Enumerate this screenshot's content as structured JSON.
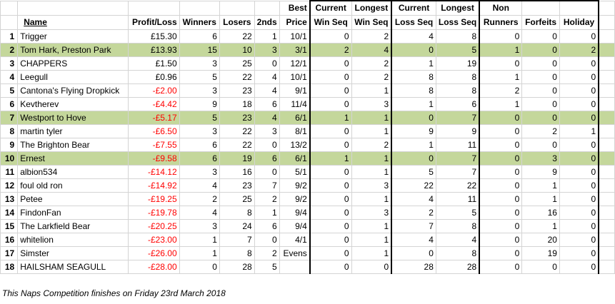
{
  "headers": {
    "name": "Name",
    "profit_loss": "Profit/Loss",
    "winners": "Winners",
    "losers": "Losers",
    "seconds": "2nds",
    "best_price": [
      "Best",
      "Price"
    ],
    "current_win_seq": [
      "Current",
      "Win Seq"
    ],
    "longest_win_seq": [
      "Longest",
      "Win Seq"
    ],
    "current_loss_seq": [
      "Current",
      "Loss Seq"
    ],
    "longest_loss_seq": [
      "Longest",
      "Loss Seq"
    ],
    "non_runners": [
      "Non",
      "Runners"
    ],
    "forfeits": "Forfeits",
    "holiday": "Holiday"
  },
  "rows": [
    {
      "rank": "1",
      "name": "Trigger",
      "pl": "£15.30",
      "neg": false,
      "win": "6",
      "lose": "22",
      "sec": "1",
      "best": "10/1",
      "cws": "0",
      "lws": "2",
      "cls": "4",
      "lls": "8",
      "nr": "0",
      "ff": "0",
      "hol": "0",
      "hl": false
    },
    {
      "rank": "2",
      "name": "Tom Hark, Preston Park",
      "pl": "£13.93",
      "neg": false,
      "win": "15",
      "lose": "10",
      "sec": "3",
      "best": "3/1",
      "cws": "2",
      "lws": "4",
      "cls": "0",
      "lls": "5",
      "nr": "1",
      "ff": "0",
      "hol": "2",
      "hl": true
    },
    {
      "rank": "3",
      "name": "CHAPPERS",
      "pl": "£1.50",
      "neg": false,
      "win": "3",
      "lose": "25",
      "sec": "0",
      "best": "12/1",
      "cws": "0",
      "lws": "2",
      "cls": "1",
      "lls": "19",
      "nr": "0",
      "ff": "0",
      "hol": "0",
      "hl": false
    },
    {
      "rank": "4",
      "name": "Leegull",
      "pl": "£0.96",
      "neg": false,
      "win": "5",
      "lose": "22",
      "sec": "4",
      "best": "10/1",
      "cws": "0",
      "lws": "2",
      "cls": "8",
      "lls": "8",
      "nr": "1",
      "ff": "0",
      "hol": "0",
      "hl": false
    },
    {
      "rank": "5",
      "name": "Cantona's Flying Dropkick",
      "pl": "-£2.00",
      "neg": true,
      "win": "3",
      "lose": "23",
      "sec": "4",
      "best": "9/1",
      "cws": "0",
      "lws": "1",
      "cls": "8",
      "lls": "8",
      "nr": "2",
      "ff": "0",
      "hol": "0",
      "hl": false
    },
    {
      "rank": "6",
      "name": "Kevtherev",
      "pl": "-£4.42",
      "neg": true,
      "win": "9",
      "lose": "18",
      "sec": "6",
      "best": "11/4",
      "cws": "0",
      "lws": "3",
      "cls": "1",
      "lls": "6",
      "nr": "1",
      "ff": "0",
      "hol": "0",
      "hl": false
    },
    {
      "rank": "7",
      "name": "Westport to Hove",
      "pl": "-£5.17",
      "neg": true,
      "win": "5",
      "lose": "23",
      "sec": "4",
      "best": "6/1",
      "cws": "1",
      "lws": "1",
      "cls": "0",
      "lls": "7",
      "nr": "0",
      "ff": "0",
      "hol": "0",
      "hl": true
    },
    {
      "rank": "8",
      "name": "martin tyler",
      "pl": "-£6.50",
      "neg": true,
      "win": "3",
      "lose": "22",
      "sec": "3",
      "best": "8/1",
      "cws": "0",
      "lws": "1",
      "cls": "9",
      "lls": "9",
      "nr": "0",
      "ff": "2",
      "hol": "1",
      "hl": false
    },
    {
      "rank": "9",
      "name": "The Brighton Bear",
      "pl": "-£7.55",
      "neg": true,
      "win": "6",
      "lose": "22",
      "sec": "0",
      "best": "13/2",
      "cws": "0",
      "lws": "2",
      "cls": "1",
      "lls": "11",
      "nr": "0",
      "ff": "0",
      "hol": "0",
      "hl": false
    },
    {
      "rank": "10",
      "name": "Ernest",
      "pl": "-£9.58",
      "neg": true,
      "win": "6",
      "lose": "19",
      "sec": "6",
      "best": "6/1",
      "cws": "1",
      "lws": "1",
      "cls": "0",
      "lls": "7",
      "nr": "0",
      "ff": "3",
      "hol": "0",
      "hl": true
    },
    {
      "rank": "11",
      "name": "albion534",
      "pl": "-£14.12",
      "neg": true,
      "win": "3",
      "lose": "16",
      "sec": "0",
      "best": "5/1",
      "cws": "0",
      "lws": "1",
      "cls": "5",
      "lls": "7",
      "nr": "0",
      "ff": "9",
      "hol": "0",
      "hl": false
    },
    {
      "rank": "12",
      "name": "foul old ron",
      "pl": "-£14.92",
      "neg": true,
      "win": "4",
      "lose": "23",
      "sec": "7",
      "best": "9/2",
      "cws": "0",
      "lws": "3",
      "cls": "22",
      "lls": "22",
      "nr": "0",
      "ff": "1",
      "hol": "0",
      "hl": false
    },
    {
      "rank": "13",
      "name": "Petee",
      "pl": "-£19.25",
      "neg": true,
      "win": "2",
      "lose": "25",
      "sec": "2",
      "best": "9/2",
      "cws": "0",
      "lws": "1",
      "cls": "4",
      "lls": "11",
      "nr": "0",
      "ff": "1",
      "hol": "0",
      "hl": false
    },
    {
      "rank": "14",
      "name": "FindonFan",
      "pl": "-£19.78",
      "neg": true,
      "win": "4",
      "lose": "8",
      "sec": "1",
      "best": "9/4",
      "cws": "0",
      "lws": "3",
      "cls": "2",
      "lls": "5",
      "nr": "0",
      "ff": "16",
      "hol": "0",
      "hl": false
    },
    {
      "rank": "15",
      "name": "The Larkfield Bear",
      "pl": "-£20.25",
      "neg": true,
      "win": "3",
      "lose": "24",
      "sec": "6",
      "best": "9/4",
      "cws": "0",
      "lws": "1",
      "cls": "7",
      "lls": "8",
      "nr": "0",
      "ff": "1",
      "hol": "0",
      "hl": false
    },
    {
      "rank": "16",
      "name": "whitelion",
      "pl": "-£23.00",
      "neg": true,
      "win": "1",
      "lose": "7",
      "sec": "0",
      "best": "4/1",
      "cws": "0",
      "lws": "1",
      "cls": "4",
      "lls": "4",
      "nr": "0",
      "ff": "20",
      "hol": "0",
      "hl": false
    },
    {
      "rank": "17",
      "name": "Simster",
      "pl": "-£26.00",
      "neg": true,
      "win": "1",
      "lose": "8",
      "sec": "2",
      "best": "Evens",
      "cws": "0",
      "lws": "1",
      "cls": "0",
      "lls": "8",
      "nr": "0",
      "ff": "19",
      "hol": "0",
      "hl": false
    },
    {
      "rank": "18",
      "name": "HAILSHAM SEAGULL",
      "pl": "-£28.00",
      "neg": true,
      "win": "0",
      "lose": "28",
      "sec": "5",
      "best": "",
      "cws": "0",
      "lws": "0",
      "cls": "28",
      "lls": "28",
      "nr": "0",
      "ff": "0",
      "hol": "0",
      "hl": false
    }
  ],
  "footer": "This Naps Competition finishes on Friday 23rd March 2018"
}
